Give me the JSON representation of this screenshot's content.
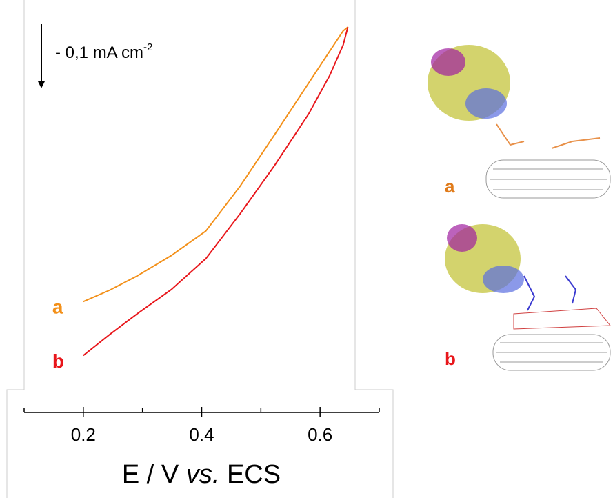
{
  "chart_data": {
    "type": "line",
    "x_label": {
      "main": "E / V ",
      "italic": "vs.",
      "tail": " ECS"
    },
    "scale_bar": {
      "label": "- 0,1 mA cm",
      "superscript": "-2",
      "value": 0.1
    },
    "x": [
      0.2,
      0.245,
      0.291,
      0.349,
      0.407,
      0.465,
      0.523,
      0.581,
      0.616,
      0.639,
      0.647
    ],
    "series": [
      {
        "name": "a",
        "color": "#f39019",
        "values": [
          -0.428,
          -0.41,
          -0.388,
          -0.356,
          -0.318,
          -0.248,
          -0.168,
          -0.087,
          -0.038,
          -0.006,
          0
        ]
      },
      {
        "name": "b",
        "color": "#e8161b",
        "values": [
          -0.512,
          -0.479,
          -0.447,
          -0.409,
          -0.361,
          -0.291,
          -0.216,
          -0.135,
          -0.076,
          -0.028,
          0
        ]
      }
    ],
    "xlim": [
      0.1,
      0.7
    ],
    "xticks": [
      0.2,
      0.4,
      0.6
    ],
    "xminor": [
      0.1,
      0.3,
      0.5,
      0.7
    ],
    "ylim": [
      -0.56,
      0.04
    ]
  }
}
